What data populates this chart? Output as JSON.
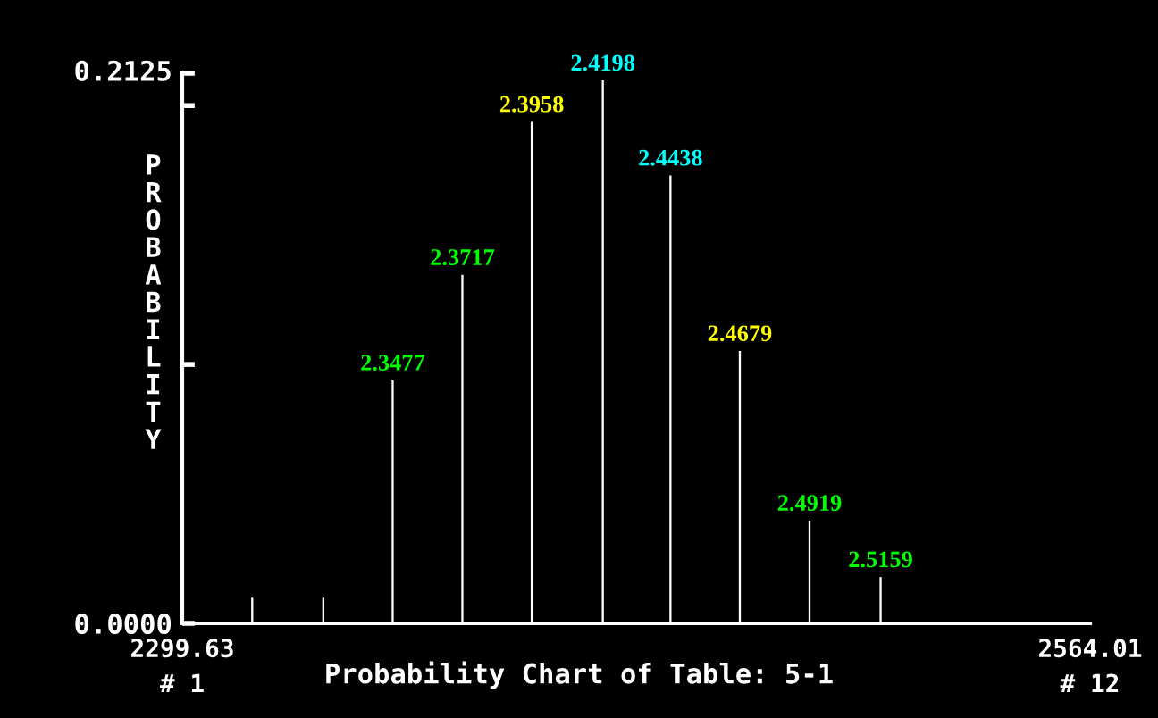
{
  "chart_data": {
    "type": "bar",
    "title": "Probability Chart of Table: 5-1",
    "ylabel": "PROBABILITY",
    "x": [
      2320.0,
      2340.7,
      2360.9,
      2381.2,
      2401.4,
      2422.1,
      2441.8,
      2462.0,
      2482.3,
      2503.0
    ],
    "values": [
      0.0099,
      0.0099,
      0.0939,
      0.1346,
      0.1937,
      0.2097,
      0.173,
      0.1052,
      0.0397,
      0.0179
    ],
    "annotations": [
      {
        "text": "2.3477",
        "x": 2360.9,
        "y": 0.0939
      },
      {
        "text": "2.3717",
        "x": 2381.2,
        "y": 0.1346
      },
      {
        "text": "2.3958",
        "x": 2401.4,
        "y": 0.1937
      },
      {
        "text": "2.4198",
        "x": 2422.1,
        "y": 0.2097
      },
      {
        "text": "2.4438",
        "x": 2441.8,
        "y": 0.173
      },
      {
        "text": "2.4679",
        "x": 2462.0,
        "y": 0.1052
      },
      {
        "text": "2.4919",
        "x": 2482.3,
        "y": 0.0397
      },
      {
        "text": "2.5159",
        "x": 2503.0,
        "y": 0.0179
      },
      "# 1",
      "# 12"
    ],
    "color": "#ffffff",
    "xlim": [
      2299.63,
      2564.01
    ],
    "xticks": [
      {
        "value": 2299.63,
        "label": "2299.63"
      },
      {
        "value": 2564.01,
        "label": "2564.01"
      }
    ],
    "ylim": [
      0,
      0.2125
    ],
    "yticks": [
      {
        "value": 0,
        "label": "0.0000"
      },
      {
        "value": 0.1,
        "label": null
      },
      {
        "value": 0.2,
        "label": null
      },
      {
        "value": 0.2125,
        "label": "0.2125"
      }
    ],
    "grid": false,
    "legend": false
  }
}
